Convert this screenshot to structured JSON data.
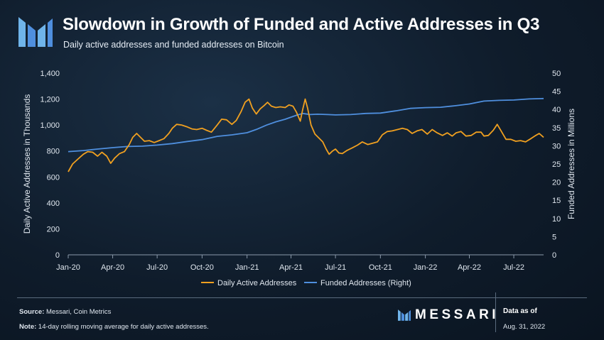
{
  "header": {
    "title": "Slowdown in Growth of Funded and Active Addresses in Q3",
    "subtitle": "Daily active addresses and funded addresses on Bitcoin"
  },
  "footer": {
    "source_label": "Source:",
    "source_text": " Messari, Coin Metrics",
    "note_label": "Note:",
    "note_text": " 14-day rolling moving average for daily active addresses.",
    "brand": "MESSARI",
    "asof_label": "Data as of",
    "asof_date": "Aug. 31, 2022"
  },
  "colors": {
    "active": "#f0a020",
    "funded": "#4f8fde",
    "axis_text": "#dfe6ee",
    "grid": "#2a3b4d",
    "logo": "#6fb4ea"
  },
  "chart_data": {
    "type": "line",
    "ylabel": "Daily Active Addresses in Thousands",
    "ylabel_right": "Funded Addresses in Millions",
    "ylim": [
      0,
      1400
    ],
    "ylim_right": [
      0,
      50
    ],
    "yticks": [
      "0",
      "200",
      "400",
      "600",
      "800",
      "1,000",
      "1,200",
      "1,400"
    ],
    "yticks_right": [
      "0",
      "5",
      "10",
      "15",
      "20",
      "25",
      "30",
      "35",
      "40",
      "45",
      "50"
    ],
    "xlim": [
      "2020-01-01",
      "2022-08-31"
    ],
    "xticks": [
      {
        "date": "2020-01-01",
        "label": "Jan-20"
      },
      {
        "date": "2020-04-01",
        "label": "Apr-20"
      },
      {
        "date": "2020-07-01",
        "label": "Jul-20"
      },
      {
        "date": "2020-10-01",
        "label": "Oct-20"
      },
      {
        "date": "2021-01-01",
        "label": "Jan-21"
      },
      {
        "date": "2021-04-01",
        "label": "Apr-21"
      },
      {
        "date": "2021-07-01",
        "label": "Jul-21"
      },
      {
        "date": "2021-10-01",
        "label": "Oct-21"
      },
      {
        "date": "2022-01-01",
        "label": "Jan-22"
      },
      {
        "date": "2022-04-01",
        "label": "Apr-22"
      },
      {
        "date": "2022-07-01",
        "label": "Jul-22"
      }
    ],
    "grid": false,
    "legend_position": "bottom",
    "series": [
      {
        "name": "Daily Active Addresses",
        "axis": "left",
        "color": "#f0a020",
        "points": [
          [
            "2020-01-01",
            640
          ],
          [
            "2020-01-10",
            700
          ],
          [
            "2020-01-20",
            735
          ],
          [
            "2020-02-01",
            775
          ],
          [
            "2020-02-10",
            795
          ],
          [
            "2020-02-20",
            790
          ],
          [
            "2020-03-01",
            760
          ],
          [
            "2020-03-10",
            790
          ],
          [
            "2020-03-20",
            760
          ],
          [
            "2020-03-28",
            705
          ],
          [
            "2020-04-05",
            745
          ],
          [
            "2020-04-15",
            780
          ],
          [
            "2020-04-25",
            795
          ],
          [
            "2020-05-05",
            850
          ],
          [
            "2020-05-12",
            905
          ],
          [
            "2020-05-20",
            935
          ],
          [
            "2020-05-28",
            905
          ],
          [
            "2020-06-05",
            875
          ],
          [
            "2020-06-15",
            880
          ],
          [
            "2020-06-25",
            865
          ],
          [
            "2020-07-05",
            880
          ],
          [
            "2020-07-15",
            895
          ],
          [
            "2020-07-25",
            935
          ],
          [
            "2020-08-01",
            975
          ],
          [
            "2020-08-10",
            1005
          ],
          [
            "2020-08-20",
            1000
          ],
          [
            "2020-09-01",
            985
          ],
          [
            "2020-09-10",
            970
          ],
          [
            "2020-09-20",
            965
          ],
          [
            "2020-10-01",
            975
          ],
          [
            "2020-10-10",
            960
          ],
          [
            "2020-10-20",
            945
          ],
          [
            "2020-11-01",
            1000
          ],
          [
            "2020-11-10",
            1045
          ],
          [
            "2020-11-20",
            1040
          ],
          [
            "2020-12-01",
            1005
          ],
          [
            "2020-12-10",
            1035
          ],
          [
            "2020-12-20",
            1105
          ],
          [
            "2020-12-28",
            1175
          ],
          [
            "2021-01-05",
            1200
          ],
          [
            "2021-01-12",
            1130
          ],
          [
            "2021-01-20",
            1085
          ],
          [
            "2021-01-28",
            1125
          ],
          [
            "2021-02-05",
            1150
          ],
          [
            "2021-02-12",
            1175
          ],
          [
            "2021-02-20",
            1145
          ],
          [
            "2021-03-01",
            1135
          ],
          [
            "2021-03-10",
            1140
          ],
          [
            "2021-03-20",
            1135
          ],
          [
            "2021-03-28",
            1155
          ],
          [
            "2021-04-05",
            1145
          ],
          [
            "2021-04-12",
            1100
          ],
          [
            "2021-04-20",
            1030
          ],
          [
            "2021-04-25",
            1120
          ],
          [
            "2021-04-30",
            1200
          ],
          [
            "2021-05-05",
            1130
          ],
          [
            "2021-05-12",
            1000
          ],
          [
            "2021-05-20",
            930
          ],
          [
            "2021-05-28",
            900
          ],
          [
            "2021-06-05",
            870
          ],
          [
            "2021-06-12",
            815
          ],
          [
            "2021-06-18",
            775
          ],
          [
            "2021-06-25",
            800
          ],
          [
            "2021-07-01",
            815
          ],
          [
            "2021-07-08",
            785
          ],
          [
            "2021-07-15",
            780
          ],
          [
            "2021-07-25",
            805
          ],
          [
            "2021-08-05",
            825
          ],
          [
            "2021-08-15",
            845
          ],
          [
            "2021-08-25",
            870
          ],
          [
            "2021-09-05",
            850
          ],
          [
            "2021-09-15",
            860
          ],
          [
            "2021-09-25",
            870
          ],
          [
            "2021-10-05",
            925
          ],
          [
            "2021-10-15",
            950
          ],
          [
            "2021-10-25",
            955
          ],
          [
            "2021-11-05",
            965
          ],
          [
            "2021-11-15",
            975
          ],
          [
            "2021-11-25",
            965
          ],
          [
            "2021-12-05",
            935
          ],
          [
            "2021-12-15",
            955
          ],
          [
            "2021-12-25",
            965
          ],
          [
            "2022-01-05",
            930
          ],
          [
            "2022-01-15",
            965
          ],
          [
            "2022-01-25",
            940
          ],
          [
            "2022-02-05",
            920
          ],
          [
            "2022-02-15",
            940
          ],
          [
            "2022-02-25",
            915
          ],
          [
            "2022-03-05",
            940
          ],
          [
            "2022-03-15",
            950
          ],
          [
            "2022-03-25",
            915
          ],
          [
            "2022-04-05",
            920
          ],
          [
            "2022-04-15",
            945
          ],
          [
            "2022-04-25",
            945
          ],
          [
            "2022-05-01",
            915
          ],
          [
            "2022-05-10",
            920
          ],
          [
            "2022-05-20",
            960
          ],
          [
            "2022-05-28",
            1005
          ],
          [
            "2022-06-05",
            955
          ],
          [
            "2022-06-15",
            890
          ],
          [
            "2022-06-25",
            890
          ],
          [
            "2022-07-05",
            875
          ],
          [
            "2022-07-15",
            880
          ],
          [
            "2022-07-25",
            870
          ],
          [
            "2022-08-05",
            895
          ],
          [
            "2022-08-15",
            920
          ],
          [
            "2022-08-22",
            935
          ],
          [
            "2022-08-31",
            905
          ]
        ]
      },
      {
        "name": "Funded Addresses (Right)",
        "axis": "right",
        "color": "#4f8fde",
        "points": [
          [
            "2020-01-01",
            28.4
          ],
          [
            "2020-02-01",
            28.7
          ],
          [
            "2020-03-01",
            29.1
          ],
          [
            "2020-04-01",
            29.5
          ],
          [
            "2020-05-01",
            29.8
          ],
          [
            "2020-06-01",
            29.9
          ],
          [
            "2020-07-01",
            30.2
          ],
          [
            "2020-08-01",
            30.6
          ],
          [
            "2020-09-01",
            31.2
          ],
          [
            "2020-10-01",
            31.7
          ],
          [
            "2020-11-01",
            32.6
          ],
          [
            "2020-12-01",
            33.0
          ],
          [
            "2021-01-01",
            33.6
          ],
          [
            "2021-01-20",
            34.5
          ],
          [
            "2021-02-10",
            35.7
          ],
          [
            "2021-03-01",
            36.6
          ],
          [
            "2021-03-20",
            37.3
          ],
          [
            "2021-04-10",
            38.3
          ],
          [
            "2021-04-25",
            38.9
          ],
          [
            "2021-05-10",
            38.6
          ],
          [
            "2021-05-25",
            38.7
          ],
          [
            "2021-06-15",
            38.6
          ],
          [
            "2021-07-01",
            38.5
          ],
          [
            "2021-08-01",
            38.6
          ],
          [
            "2021-09-01",
            38.9
          ],
          [
            "2021-10-01",
            39.0
          ],
          [
            "2021-11-01",
            39.6
          ],
          [
            "2021-12-01",
            40.3
          ],
          [
            "2022-01-01",
            40.5
          ],
          [
            "2022-02-01",
            40.6
          ],
          [
            "2022-03-01",
            41.0
          ],
          [
            "2022-04-01",
            41.5
          ],
          [
            "2022-05-01",
            42.3
          ],
          [
            "2022-06-01",
            42.5
          ],
          [
            "2022-07-01",
            42.6
          ],
          [
            "2022-08-01",
            42.9
          ],
          [
            "2022-08-31",
            43.0
          ]
        ]
      }
    ]
  }
}
